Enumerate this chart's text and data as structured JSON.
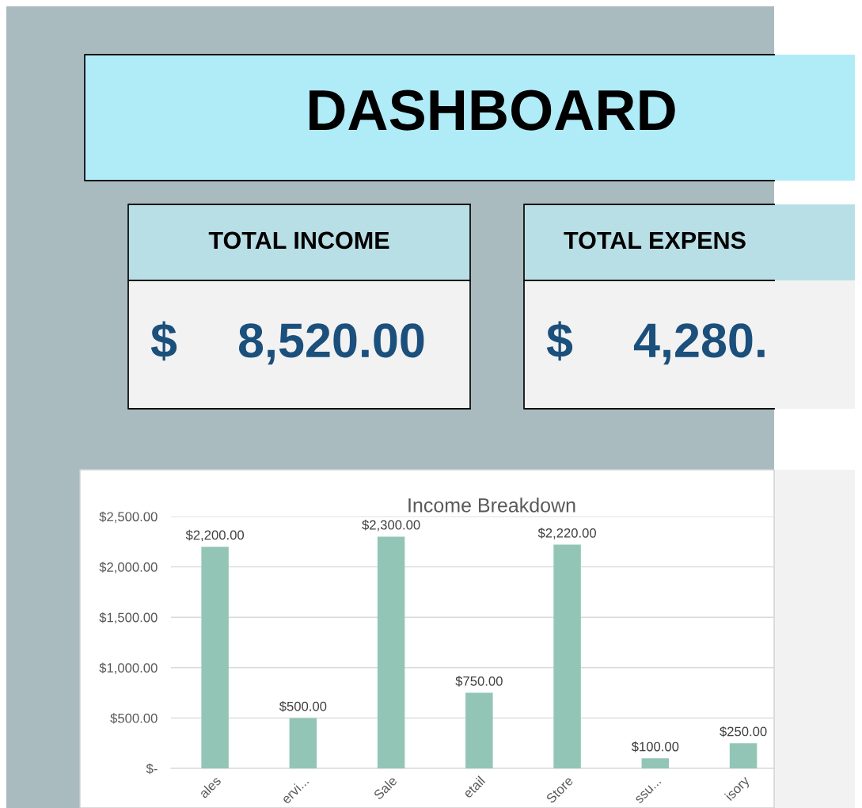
{
  "chart_data": [
    {
      "type": "other",
      "title": "DASHBOARD"
    },
    {
      "type": "other",
      "title": "TOTAL INCOME",
      "annotations": [
        "$",
        "8,520.00"
      ]
    },
    {
      "type": "other",
      "title": "TOTAL EXPENS",
      "annotations": [
        "$",
        "4,280."
      ]
    },
    {
      "type": "bar",
      "title": "Income Breakdown",
      "categories": [
        "ales",
        "ervi...",
        "Sale",
        "etail",
        "Store",
        "ssu...",
        "isory"
      ],
      "values": [
        2200,
        500,
        2300,
        750,
        2220,
        100,
        250
      ],
      "value_labels": [
        "$2,200.00",
        "$500.00",
        "$2,300.00",
        "$750.00",
        "$2,220.00",
        "$100.00",
        "$250.00"
      ],
      "color": "#92c5b5",
      "ylim": [
        0,
        2500
      ],
      "yticks": [
        {
          "value": 0,
          "label": "$-"
        },
        {
          "value": 500,
          "label": "$500.00"
        },
        {
          "value": 1000,
          "label": "$1,000.00"
        },
        {
          "value": 1500,
          "label": "$1,500.00"
        },
        {
          "value": 2000,
          "label": "$2,000.00"
        },
        {
          "value": 2500,
          "label": "$2,500.00"
        }
      ],
      "grid": "y"
    }
  ]
}
